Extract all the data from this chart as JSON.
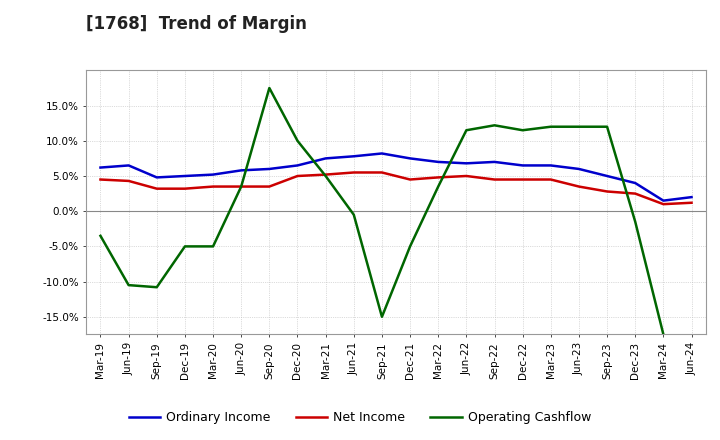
{
  "title": "[1768]  Trend of Margin",
  "x_labels": [
    "Mar-19",
    "Jun-19",
    "Sep-19",
    "Dec-19",
    "Mar-20",
    "Jun-20",
    "Sep-20",
    "Dec-20",
    "Mar-21",
    "Jun-21",
    "Sep-21",
    "Dec-21",
    "Mar-22",
    "Jun-22",
    "Sep-22",
    "Dec-22",
    "Mar-23",
    "Jun-23",
    "Sep-23",
    "Dec-23",
    "Mar-24",
    "Jun-24"
  ],
  "ordinary_income": [
    6.2,
    6.5,
    4.8,
    5.0,
    5.2,
    5.8,
    6.0,
    6.5,
    7.5,
    7.8,
    8.2,
    7.5,
    7.0,
    6.8,
    7.0,
    6.5,
    6.5,
    6.0,
    5.0,
    4.0,
    1.5,
    2.0
  ],
  "net_income": [
    4.5,
    4.3,
    3.2,
    3.2,
    3.5,
    3.5,
    3.5,
    5.0,
    5.2,
    5.5,
    5.5,
    4.5,
    4.8,
    5.0,
    4.5,
    4.5,
    4.5,
    3.5,
    2.8,
    2.5,
    1.0,
    1.2
  ],
  "operating_cashflow": [
    -3.5,
    -10.5,
    -10.8,
    -5.0,
    -5.0,
    3.5,
    17.5,
    10.0,
    5.0,
    -0.5,
    -15.0,
    -5.0,
    3.5,
    11.5,
    12.2,
    11.5,
    12.0,
    12.0,
    12.0,
    -1.5,
    -17.5,
    null
  ],
  "ordinary_income_color": "#0000cc",
  "net_income_color": "#cc0000",
  "operating_cashflow_color": "#006600",
  "ylim": [
    -17.5,
    20.0
  ],
  "yticks": [
    -15.0,
    -10.0,
    -5.0,
    0.0,
    5.0,
    10.0,
    15.0
  ],
  "ytick_labels": [
    "-15.0%",
    "-10.0%",
    "-5.0%",
    "0.0%",
    "5.0%",
    "10.0%",
    "15.0%"
  ],
  "background_color": "#ffffff",
  "plot_bg_color": "#ffffff",
  "grid_color": "#bbbbbb",
  "line_width": 1.8,
  "title_fontsize": 12,
  "tick_fontsize": 7.5,
  "legend_fontsize": 9
}
